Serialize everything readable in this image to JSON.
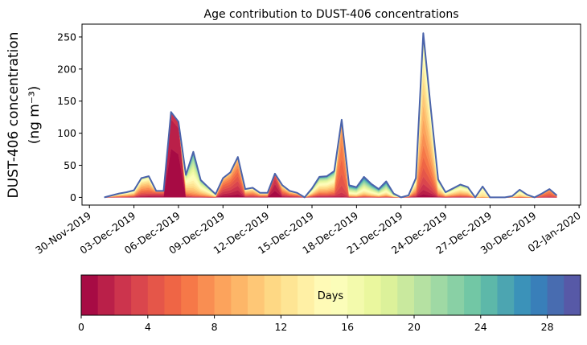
{
  "chart_data": {
    "type": "area",
    "stacked": true,
    "title": "Age contribution to DUST-406 concentrations",
    "ylabel_line1": "DUST-406 concentration",
    "ylabel_line2": "(ng m⁻³)",
    "xlabel": "",
    "ylim": [
      -12,
      270
    ],
    "yticks": [
      0,
      50,
      100,
      150,
      200,
      250
    ],
    "x_start_date": "30-Nov-2019",
    "x_range_days": [
      -0.5,
      33.1
    ],
    "xticks": [
      {
        "day": 0,
        "label": "30-Nov-2019"
      },
      {
        "day": 3,
        "label": "03-Dec-2019"
      },
      {
        "day": 6,
        "label": "06-Dec-2019"
      },
      {
        "day": 9,
        "label": "09-Dec-2019"
      },
      {
        "day": 12,
        "label": "12-Dec-2019"
      },
      {
        "day": 15,
        "label": "15-Dec-2019"
      },
      {
        "day": 18,
        "label": "18-Dec-2019"
      },
      {
        "day": 21,
        "label": "21-Dec-2019"
      },
      {
        "day": 24,
        "label": "24-Dec-2019"
      },
      {
        "day": 27,
        "label": "27-Dec-2019"
      },
      {
        "day": 30,
        "label": "30-Dec-2019"
      },
      {
        "day": 33,
        "label": "02-Jan-2020"
      }
    ],
    "time_step_days": 0.5,
    "first_point_day": 1,
    "total": [
      0,
      3,
      6,
      8,
      11,
      30,
      33,
      10,
      10,
      133,
      118,
      35,
      71,
      27,
      16,
      5,
      30,
      39,
      63,
      13,
      15,
      7,
      7,
      37,
      19,
      10,
      7,
      0,
      14,
      32,
      33,
      41,
      121,
      19,
      16,
      32,
      21,
      13,
      25,
      6,
      0,
      3,
      30,
      256,
      140,
      28,
      8,
      14,
      20,
      16,
      0,
      17,
      0,
      0,
      0,
      2,
      12,
      4,
      0,
      6,
      13,
      3
    ],
    "mean_age_days": [
      10,
      10,
      10,
      10,
      10,
      8,
      8,
      2,
      2,
      0.5,
      0.5,
      12,
      16,
      14,
      14,
      14,
      4,
      4,
      4,
      8,
      8,
      8,
      8,
      1,
      6,
      6,
      6,
      6,
      12,
      12,
      12,
      12,
      6,
      18,
      18,
      18,
      18,
      18,
      18,
      18,
      10,
      10,
      10,
      9,
      9,
      12,
      12,
      12,
      12,
      12,
      12,
      14,
      14,
      14,
      14,
      14,
      14,
      14,
      14,
      6,
      6,
      6
    ],
    "age_spread_days": [
      6,
      6,
      6,
      6,
      6,
      6,
      6,
      4,
      4,
      1,
      1,
      6,
      6,
      6,
      6,
      6,
      4,
      4,
      4,
      5,
      5,
      5,
      5,
      2,
      5,
      5,
      5,
      5,
      8,
      8,
      8,
      8,
      2,
      8,
      8,
      8,
      8,
      8,
      8,
      8,
      6,
      6,
      6,
      5,
      5,
      6,
      6,
      6,
      6,
      6,
      6,
      2,
      4,
      4,
      4,
      4,
      4,
      4,
      4,
      2,
      2,
      2
    ],
    "age_bins": 30,
    "total_line_color": "#4a63ab",
    "colormap": [
      "#9e0142",
      "#d53e4f",
      "#f46d43",
      "#fdae61",
      "#fee08b",
      "#ffffbf",
      "#e6f598",
      "#abdda4",
      "#66c2a5",
      "#3288bd",
      "#5e4fa2"
    ],
    "colorbar": {
      "label": "Days",
      "range": [
        0,
        30
      ],
      "ticks": [
        0,
        4,
        8,
        12,
        16,
        20,
        24,
        28
      ]
    }
  }
}
